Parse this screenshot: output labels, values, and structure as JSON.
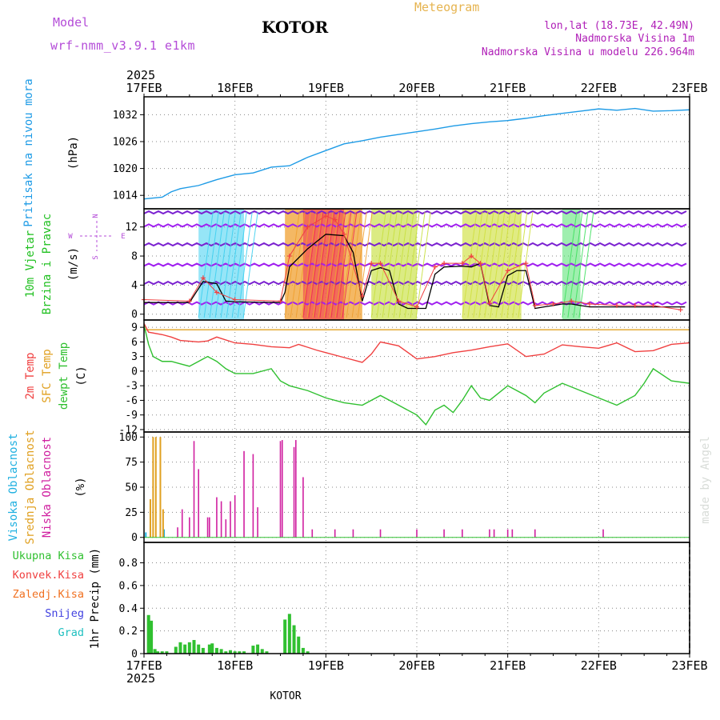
{
  "header": {
    "model_label": "Model",
    "model_name": "wrf-nmm_v3.9.1 e1km",
    "station": "KOTOR",
    "meteogram": "Meteogram",
    "lonlat": "lon,lat (18.73E, 42.49N)",
    "elev": "Nadmorska Visina 1m",
    "elev_model": "Nadmorska Visina u modelu 226.964m"
  },
  "footer": {
    "station": "KOTOR",
    "credit": "made by Angel"
  },
  "colors": {
    "model": "#b44cd8",
    "meteogram": "#e6b450",
    "info": "#b020b8",
    "pressure": "#1e9be6",
    "wind_label": "#20c020",
    "temp2m": "#f04040",
    "sfc": "#e0a020",
    "dew": "#30c030",
    "high_cloud": "#20b0e0",
    "mid_cloud": "#e0a020",
    "low_cloud": "#d020a0"
  },
  "time_axis": {
    "year": "2025",
    "ticks": [
      "17FEB",
      "18FEB",
      "19FEB",
      "20FEB",
      "21FEB",
      "22FEB",
      "23FEB"
    ]
  },
  "chart_data": [
    {
      "type": "line",
      "name": "pressure",
      "ylabel_title": "Pritisak na nivou mora",
      "ylabel_unit": "(hPa)",
      "ylim": [
        1011,
        1036
      ],
      "yticks": [
        "1014",
        "1020",
        "1026",
        "1032"
      ],
      "ytick_values": [
        1014,
        1020,
        1026,
        1032
      ],
      "grid": true,
      "series": [
        {
          "x": [
            0,
            0.2,
            0.3,
            0.4,
            0.6,
            0.8,
            1.0,
            1.2,
            1.4,
            1.6,
            1.8,
            2.0,
            2.2,
            2.4,
            2.6,
            2.8,
            3.0,
            3.2,
            3.4,
            3.6,
            3.8,
            4.0,
            4.2,
            4.4,
            4.6,
            4.8,
            5.0,
            5.2,
            5.4,
            5.6,
            5.8,
            6.0
          ],
          "values": [
            1013.2,
            1013.6,
            1014.8,
            1015.5,
            1016.2,
            1017.5,
            1018.6,
            1019.0,
            1020.3,
            1020.6,
            1022.5,
            1024.0,
            1025.5,
            1026.2,
            1027.0,
            1027.6,
            1028.2,
            1028.8,
            1029.5,
            1030.0,
            1030.4,
            1030.7,
            1031.2,
            1031.8,
            1032.3,
            1032.8,
            1033.3,
            1033.0,
            1033.4,
            1032.8,
            1032.9,
            1033.1
          ]
        }
      ]
    },
    {
      "type": "line",
      "name": "wind",
      "ylabel_lines": [
        "10m Vjetar",
        "Brzina i Pravac"
      ],
      "ylabel_unit": "(m/s)",
      "compass": [
        "N",
        "W",
        "E",
        "S"
      ],
      "ylim": [
        -0.8,
        14.5
      ],
      "yticks": [
        "0",
        "4",
        "8",
        "12"
      ],
      "ytick_values": [
        0,
        4,
        8,
        12
      ],
      "grid": true,
      "series": [
        {
          "name": "speed",
          "x": [
            0,
            0.5,
            0.65,
            0.8,
            0.9,
            1.0,
            1.5,
            1.55,
            1.6,
            1.8,
            2.0,
            2.2,
            2.3,
            2.4,
            2.5,
            2.6,
            2.7,
            2.8,
            2.9,
            3.0,
            3.1,
            3.2,
            3.3,
            3.5,
            3.6,
            3.7,
            3.8,
            3.9,
            4.0,
            4.1,
            4.2,
            4.3,
            4.4,
            4.5,
            4.6,
            4.7,
            4.8,
            4.9,
            5.0,
            5.2,
            5.4,
            5.6,
            5.8,
            5.95
          ],
          "values": [
            1.6,
            1.6,
            4.5,
            4.2,
            1.8,
            1.7,
            1.6,
            3.0,
            6.5,
            9.0,
            11.0,
            10.8,
            8.5,
            1.8,
            6.0,
            6.4,
            6.0,
            1.4,
            0.8,
            0.8,
            0.8,
            5.5,
            6.5,
            6.6,
            6.5,
            7.0,
            1.2,
            1.0,
            5.3,
            6.0,
            6.0,
            0.8,
            1.0,
            1.2,
            1.4,
            1.4,
            1.2,
            1.0,
            1.0,
            1.0,
            1.0,
            1.0,
            1.0,
            1.0
          ]
        },
        {
          "name": "gust",
          "x": [
            0,
            0.5,
            0.65,
            0.8,
            1.0,
            1.5,
            1.6,
            1.8,
            2.0,
            2.1,
            2.2,
            2.4,
            2.5,
            2.6,
            2.8,
            3.0,
            3.2,
            3.3,
            3.5,
            3.6,
            3.7,
            3.8,
            4.0,
            4.2,
            4.3,
            4.5,
            4.7,
            4.9,
            5.2,
            5.4,
            5.6,
            5.9
          ],
          "values": [
            2.0,
            1.8,
            5.0,
            3.0,
            2.0,
            1.8,
            8.0,
            12.0,
            13.5,
            13.0,
            11.0,
            2.5,
            7.0,
            7.0,
            1.8,
            1.0,
            6.5,
            7.0,
            7.0,
            8.0,
            7.0,
            1.5,
            6.0,
            7.0,
            1.2,
            1.4,
            1.8,
            1.4,
            1.2,
            1.2,
            1.2,
            0.6
          ]
        }
      ]
    },
    {
      "type": "line",
      "name": "temperature",
      "ylabel_lines": [
        "2m Temp",
        "SFC Temp",
        "dewpt Temp"
      ],
      "ylabel_unit": "(C)",
      "ylim": [
        -12.5,
        10.5
      ],
      "yticks": [
        "9",
        "6",
        "3",
        "0",
        "-3",
        "-6",
        "-9",
        "-12"
      ],
      "ytick_values": [
        9,
        6,
        3,
        0,
        -3,
        -6,
        -9,
        -12
      ],
      "grid": true,
      "series": [
        {
          "name": "2m Temp",
          "x": [
            0,
            0.05,
            0.2,
            0.3,
            0.4,
            0.6,
            0.7,
            0.8,
            1.0,
            1.2,
            1.4,
            1.6,
            1.7,
            1.9,
            2.0,
            2.2,
            2.4,
            2.5,
            2.6,
            2.8,
            3.0,
            3.2,
            3.4,
            3.6,
            3.8,
            4.0,
            4.2,
            4.4,
            4.6,
            4.8,
            5.0,
            5.2,
            5.4,
            5.6,
            5.8,
            6.0
          ],
          "values": [
            9.8,
            8.0,
            7.5,
            7.0,
            6.3,
            6.0,
            6.2,
            7.0,
            5.8,
            5.5,
            5.0,
            4.8,
            5.5,
            4.3,
            3.8,
            2.8,
            1.8,
            3.5,
            6.0,
            5.2,
            2.5,
            3.0,
            3.8,
            4.3,
            5.0,
            5.6,
            3.0,
            3.5,
            5.4,
            5.0,
            4.7,
            5.8,
            4.0,
            4.2,
            5.5,
            5.8
          ]
        },
        {
          "name": "SFC Temp",
          "x": [
            0,
            6.0
          ],
          "values": [
            8.5,
            8.5
          ]
        },
        {
          "name": "dewpt Temp",
          "x": [
            0,
            0.05,
            0.1,
            0.2,
            0.3,
            0.4,
            0.5,
            0.6,
            0.7,
            0.8,
            0.9,
            1.0,
            1.2,
            1.4,
            1.5,
            1.6,
            1.8,
            2.0,
            2.2,
            2.4,
            2.6,
            2.8,
            3.0,
            3.1,
            3.2,
            3.3,
            3.4,
            3.5,
            3.6,
            3.7,
            3.8,
            4.0,
            4.2,
            4.3,
            4.4,
            4.6,
            4.8,
            5.0,
            5.2,
            5.4,
            5.5,
            5.6,
            5.8,
            6.0
          ],
          "values": [
            9.5,
            5.5,
            3.0,
            2.0,
            2.0,
            1.5,
            1.0,
            2.0,
            3.0,
            2.0,
            0.5,
            -0.5,
            -0.5,
            0.5,
            -2.0,
            -3.0,
            -4.0,
            -5.5,
            -6.5,
            -7.0,
            -5.0,
            -7.0,
            -9.0,
            -11.0,
            -8.0,
            -7.0,
            -8.5,
            -6.0,
            -3.0,
            -5.5,
            -6.0,
            -3.0,
            -5.0,
            -6.5,
            -4.5,
            -2.5,
            -4.0,
            -5.5,
            -7.0,
            -5.0,
            -2.5,
            0.5,
            -2.0,
            -2.5
          ]
        }
      ]
    },
    {
      "type": "bar",
      "name": "cloud",
      "ylabel_lines": [
        "Visoka Oblacnost",
        "Srednja Oblacnost",
        "Niska Oblacnost"
      ],
      "ylabel_unit": "(%)",
      "ylim": [
        -5,
        105
      ],
      "yticks": [
        "100",
        "75",
        "50",
        "25",
        "0"
      ],
      "ytick_values": [
        100,
        75,
        50,
        25,
        0
      ],
      "grid": true,
      "series": [
        {
          "name": "Visoka Oblacnost",
          "x": [
            0.02,
            0.22
          ],
          "values": [
            5,
            8
          ]
        },
        {
          "name": "Srednja Oblacnost",
          "x": [
            0.07,
            0.1,
            0.13,
            0.18,
            0.21
          ],
          "values": [
            38,
            100,
            100,
            100,
            28
          ]
        },
        {
          "name": "Niska Oblacnost",
          "x": [
            0.37,
            0.42,
            0.5,
            0.55,
            0.6,
            0.7,
            0.72,
            0.8,
            0.85,
            0.9,
            0.95,
            1.0,
            1.1,
            1.2,
            1.25,
            1.5,
            1.52,
            1.65,
            1.67,
            1.75,
            1.85,
            2.1,
            2.3,
            2.6,
            3.0,
            3.3,
            3.5,
            3.8,
            3.85,
            4.0,
            4.05,
            4.3,
            5.05
          ],
          "values": [
            10,
            28,
            20,
            96,
            68,
            20,
            20,
            40,
            36,
            18,
            36,
            42,
            86,
            83,
            30,
            96,
            97,
            90,
            97,
            60,
            8,
            8,
            8,
            8,
            8,
            8,
            8,
            8,
            8,
            8,
            8,
            8,
            8
          ]
        }
      ]
    },
    {
      "type": "bar",
      "name": "precip",
      "ylabel_lines": [
        "Ukupna Kisa",
        "Konvek.Kisa",
        "Zaledj.Kisa",
        "Snijeg",
        "Grad"
      ],
      "ylabel_unit": "1hr Precip (mm)",
      "ylim": [
        0,
        0.98
      ],
      "yticks": [
        "0.8",
        "0.6",
        "0.4",
        "0.2",
        "0"
      ],
      "ytick_values": [
        0.8,
        0.6,
        0.4,
        0.2,
        0
      ],
      "grid": true,
      "series": [
        {
          "name": "Ukupna Kisa",
          "x": [
            0.05,
            0.08,
            0.12,
            0.15,
            0.2,
            0.25,
            0.35,
            0.4,
            0.45,
            0.5,
            0.55,
            0.6,
            0.65,
            0.72,
            0.75,
            0.8,
            0.85,
            0.9,
            0.95,
            1.0,
            1.05,
            1.1,
            1.2,
            1.25,
            1.3,
            1.35,
            1.55,
            1.6,
            1.65,
            1.7,
            1.75,
            1.8
          ],
          "values": [
            0.34,
            0.29,
            0.04,
            0.02,
            0.02,
            0.02,
            0.06,
            0.1,
            0.08,
            0.1,
            0.12,
            0.08,
            0.05,
            0.08,
            0.09,
            0.05,
            0.04,
            0.02,
            0.03,
            0.02,
            0.02,
            0.02,
            0.07,
            0.08,
            0.04,
            0.02,
            0.3,
            0.35,
            0.25,
            0.15,
            0.05,
            0.02
          ]
        }
      ]
    }
  ]
}
